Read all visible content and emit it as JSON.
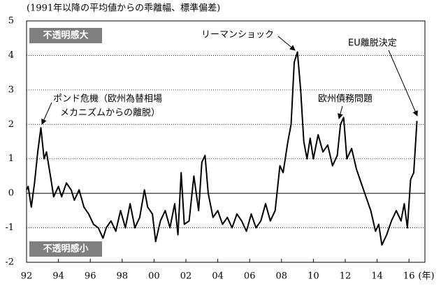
{
  "chart_data": {
    "type": "line",
    "subtitle": "(1991年以降の平均値からの乖離幅、標準偏差)",
    "xlabel": "(年)",
    "xlim": [
      1992,
      2017
    ],
    "ylim": [
      -2,
      5
    ],
    "yticks": [
      -2,
      -1,
      0,
      1,
      2,
      3,
      4,
      5
    ],
    "xticks": [
      {
        "value": 1992,
        "label": "92"
      },
      {
        "value": 1994,
        "label": "94"
      },
      {
        "value": 1996,
        "label": "96"
      },
      {
        "value": 1998,
        "label": "98"
      },
      {
        "value": 2000,
        "label": "00"
      },
      {
        "value": 2002,
        "label": "02"
      },
      {
        "value": 2004,
        "label": "04"
      },
      {
        "value": 2006,
        "label": "06"
      },
      {
        "value": 2008,
        "label": "08"
      },
      {
        "value": 2010,
        "label": "10"
      },
      {
        "value": 2012,
        "label": "12"
      },
      {
        "value": 2014,
        "label": "14"
      },
      {
        "value": 2016,
        "label": "16"
      }
    ],
    "grid": true,
    "color": "#000000",
    "annotations": [
      "不透明感大",
      "不透明感小",
      "ポンド危機（欧州為替相場",
      "メカニズムからの離脱）",
      "リーマンショック",
      "欧州債務問題",
      "EU離脱決定"
    ],
    "x": [
      1992.0,
      1992.1,
      1992.3,
      1992.5,
      1992.7,
      1992.9,
      1993.1,
      1993.25,
      1993.5,
      1993.7,
      1994.0,
      1994.2,
      1994.5,
      1994.8,
      1995.0,
      1995.3,
      1995.6,
      1995.9,
      1996.2,
      1996.5,
      1996.8,
      1997.0,
      1997.3,
      1997.6,
      1997.9,
      1998.2,
      1998.5,
      1998.8,
      1999.1,
      1999.4,
      1999.6,
      1999.9,
      2000.1,
      2000.4,
      2000.7,
      2001.0,
      2001.3,
      2001.5,
      2001.7,
      2001.9,
      2002.2,
      2002.5,
      2002.8,
      2003.0,
      2003.2,
      2003.4,
      2003.7,
      2004.0,
      2004.3,
      2004.6,
      2004.9,
      2005.2,
      2005.5,
      2005.8,
      2006.1,
      2006.4,
      2006.7,
      2007.0,
      2007.3,
      2007.6,
      2007.9,
      2008.1,
      2008.4,
      2008.6,
      2008.8,
      2009.0,
      2009.2,
      2009.4,
      2009.6,
      2009.8,
      2010.0,
      2010.3,
      2010.6,
      2010.9,
      2011.2,
      2011.5,
      2011.7,
      2011.9,
      2012.1,
      2012.4,
      2012.7,
      2013.0,
      2013.3,
      2013.6,
      2013.9,
      2014.1,
      2014.3,
      2014.6,
      2014.9,
      2015.2,
      2015.5,
      2015.7,
      2015.9,
      2016.1,
      2016.3,
      2016.5
    ],
    "values": [
      0.1,
      0.2,
      -0.4,
      0.3,
      1.2,
      1.9,
      1.0,
      1.2,
      0.5,
      -0.1,
      0.2,
      -0.1,
      0.3,
      0.1,
      -0.2,
      0.1,
      -0.4,
      -0.6,
      -0.9,
      -1.0,
      -1.3,
      -1.0,
      -0.8,
      -1.1,
      -0.5,
      -1.0,
      -0.3,
      -1.0,
      -0.7,
      0.1,
      -0.4,
      -0.6,
      -1.4,
      -0.8,
      -0.5,
      -1.0,
      -0.3,
      -1.2,
      0.6,
      -0.9,
      -0.8,
      0.5,
      -0.5,
      0.9,
      1.1,
      0.0,
      -0.7,
      -0.5,
      -0.9,
      -0.7,
      -1.0,
      -0.6,
      -0.8,
      -1.1,
      -0.6,
      -1.0,
      -0.8,
      -0.3,
      -0.8,
      -0.5,
      0.8,
      0.6,
      1.5,
      2.0,
      3.8,
      4.1,
      3.0,
      1.5,
      1.0,
      1.6,
      1.0,
      1.7,
      1.2,
      1.4,
      0.8,
      1.1,
      2.0,
      2.2,
      1.0,
      1.3,
      0.7,
      0.3,
      -0.1,
      -0.5,
      -1.1,
      -0.9,
      -1.5,
      -1.2,
      -0.8,
      -0.5,
      -0.8,
      -0.3,
      -1.0,
      0.4,
      0.6,
      2.1
    ]
  }
}
